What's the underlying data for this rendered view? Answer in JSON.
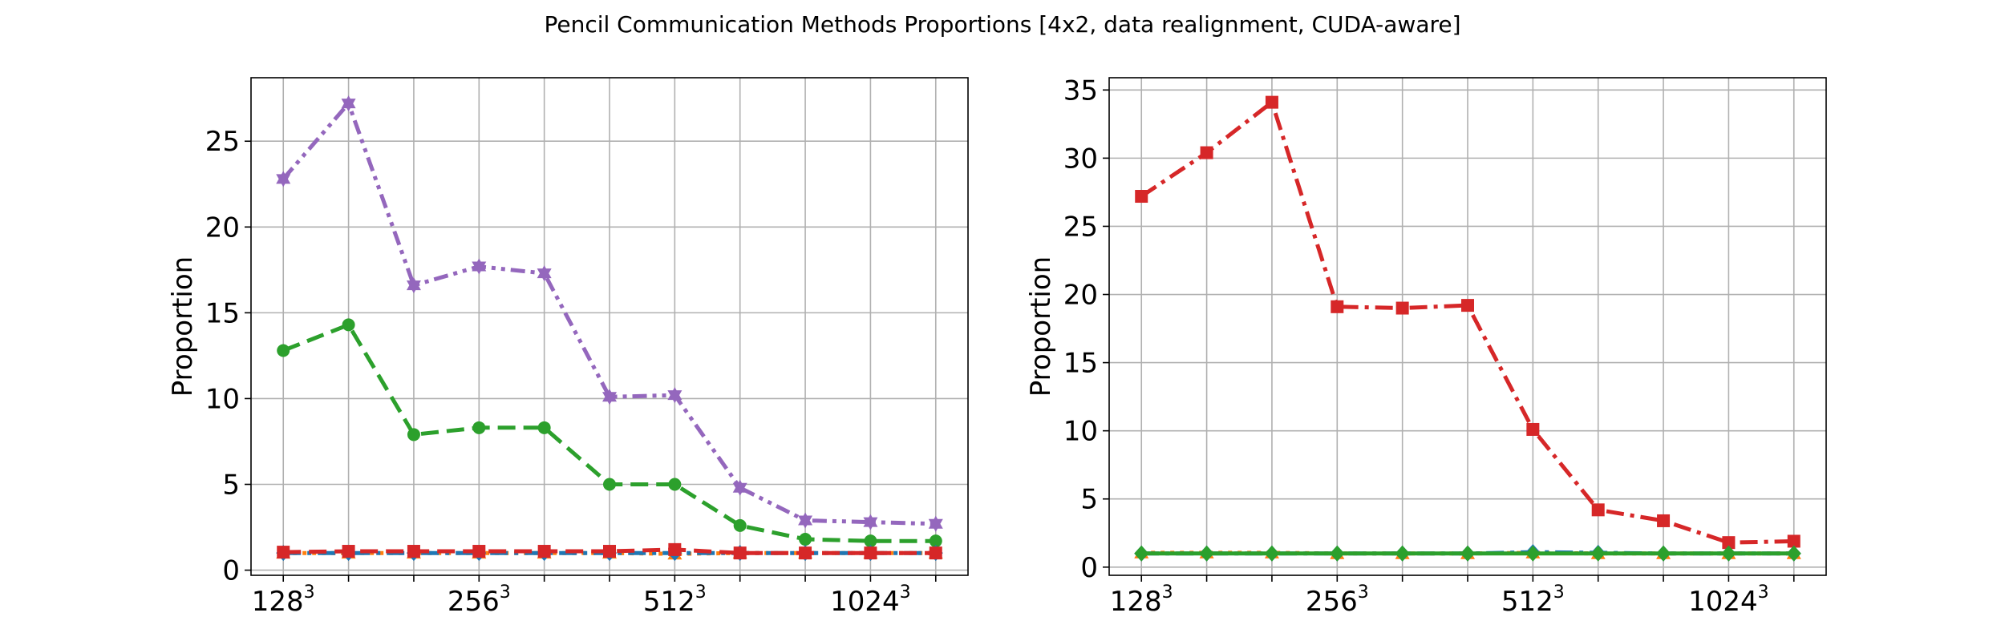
{
  "title": "Pencil Communication Methods Proportions [4x2, data realignment, CUDA-aware]",
  "chart_data": [
    {
      "type": "line",
      "ylabel": "Proportion",
      "ylim": [
        -0.3,
        28.7
      ],
      "yticks": [
        0,
        5,
        10,
        15,
        20,
        25
      ],
      "xtick_labels": [
        {
          "base": "128",
          "exp": "3",
          "index": 0
        },
        {
          "base": "256",
          "exp": "3",
          "index": 3
        },
        {
          "base": "512",
          "exp": "3",
          "index": 6
        },
        {
          "base": "1024",
          "exp": "3",
          "index": 9
        }
      ],
      "n_points": 11,
      "grid": true,
      "series": [
        {
          "color": "#9467bd",
          "dash": "dashdotdot",
          "marker": "star",
          "values": [
            22.8,
            27.2,
            16.6,
            17.7,
            17.3,
            10.1,
            10.2,
            4.8,
            2.9,
            2.8,
            2.7
          ]
        },
        {
          "color": "#2ca02c",
          "dash": "dash",
          "marker": "circle",
          "values": [
            12.8,
            14.3,
            7.9,
            8.3,
            8.3,
            5.0,
            5.0,
            2.6,
            1.8,
            1.7,
            1.7
          ]
        },
        {
          "color": "#ff7f0e",
          "dash": "dot",
          "marker": "triangle",
          "values": [
            1.0,
            1.0,
            1.0,
            1.0,
            1.0,
            1.0,
            0.95,
            1.0,
            1.0,
            1.0,
            1.0
          ]
        },
        {
          "color": "#1f77b4",
          "dash": "dashdot",
          "marker": "diamond",
          "values": [
            1.0,
            1.0,
            1.0,
            1.0,
            1.0,
            1.0,
            1.0,
            1.0,
            1.0,
            1.0,
            1.0
          ]
        },
        {
          "color": "#d62728",
          "dash": "dash",
          "marker": "square",
          "values": [
            1.05,
            1.1,
            1.1,
            1.1,
            1.1,
            1.1,
            1.2,
            1.0,
            1.0,
            1.0,
            1.0
          ]
        }
      ]
    },
    {
      "type": "line",
      "ylabel": "Proportion",
      "ylim": [
        -0.6,
        35.9
      ],
      "yticks": [
        0,
        5,
        10,
        15,
        20,
        25,
        30,
        35
      ],
      "xtick_labels": [
        {
          "base": "128",
          "exp": "3",
          "index": 0
        },
        {
          "base": "256",
          "exp": "3",
          "index": 3
        },
        {
          "base": "512",
          "exp": "3",
          "index": 6
        },
        {
          "base": "1024",
          "exp": "3",
          "index": 9
        }
      ],
      "n_points": 11,
      "grid": true,
      "series": [
        {
          "color": "#d62728",
          "dash": "dashdot",
          "marker": "square",
          "values": [
            27.2,
            30.4,
            34.1,
            19.1,
            19.0,
            19.2,
            10.1,
            4.2,
            3.4,
            1.8,
            1.9
          ]
        },
        {
          "color": "#ff7f0e",
          "dash": "dot",
          "marker": "triangle",
          "values": [
            1.05,
            1.05,
            1.05,
            1.0,
            1.0,
            1.0,
            1.05,
            1.0,
            1.0,
            1.0,
            1.0
          ]
        },
        {
          "color": "#1f77b4",
          "dash": "dashdot",
          "marker": "diamond",
          "values": [
            1.0,
            1.0,
            1.0,
            1.0,
            1.0,
            1.0,
            1.1,
            1.05,
            1.0,
            1.0,
            1.0
          ]
        },
        {
          "color": "#2ca02c",
          "dash": "solid",
          "marker": "diamond",
          "values": [
            1.0,
            1.0,
            1.0,
            1.0,
            1.0,
            1.0,
            1.0,
            1.0,
            1.0,
            1.0,
            1.0
          ]
        }
      ]
    }
  ]
}
